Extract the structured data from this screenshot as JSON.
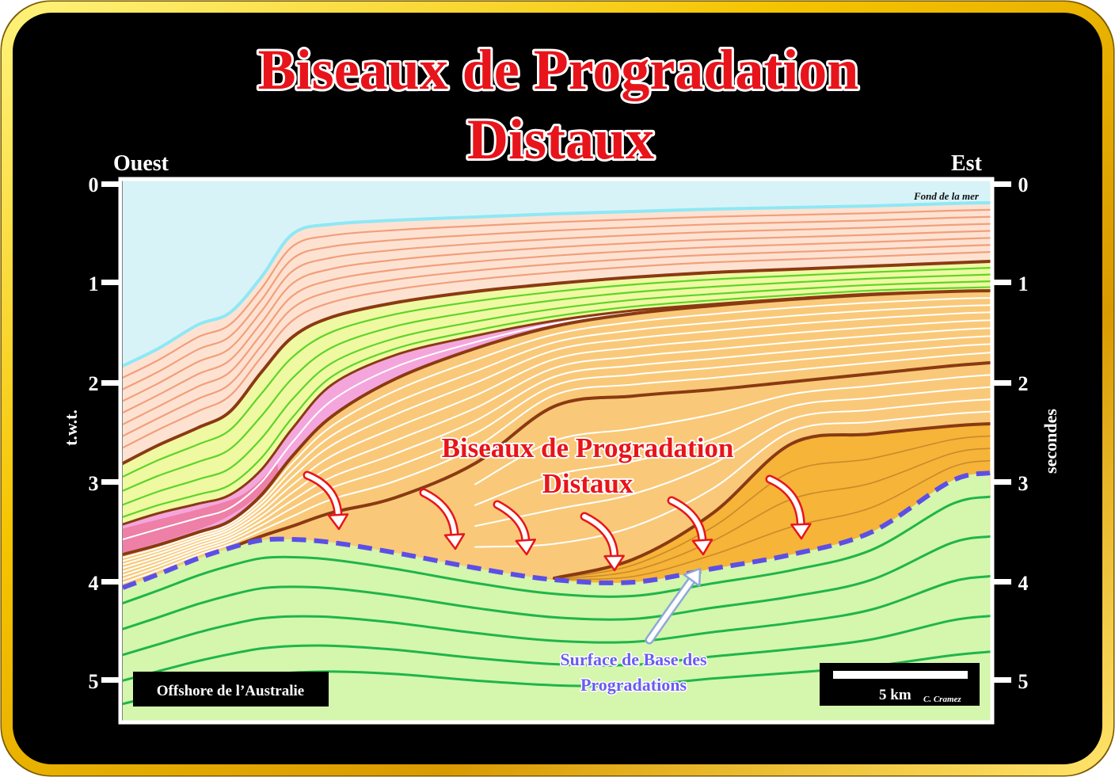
{
  "title": {
    "line1": "Biseaux de Progradation",
    "line2": "Distaux"
  },
  "directions": {
    "west": "Ouest",
    "east": "Est"
  },
  "axis": {
    "left_label": "t.w.t.",
    "right_label": "secondes",
    "ticks": [
      "0",
      "1",
      "2",
      "3",
      "4",
      "5"
    ]
  },
  "labels": {
    "sea_floor": "Fond de la mer",
    "onlap_line1": "Biseaux de Progradation",
    "onlap_line2": "Distaux",
    "surface_line1": "Surface de Base des",
    "surface_line2": "Progradations",
    "location": "Offshore de l’Australie",
    "scale": "5 km",
    "author": "C. Cramez"
  },
  "colors": {
    "title": "#e8141b",
    "onlap_label": "#e8141b",
    "surface_label": "#6a5cf0",
    "base_surface_dashed": "#5b4fe6",
    "frame_gold": "#f5c400",
    "sea": "#d8f3f7",
    "sea_floor_line": "#8ee8f5",
    "upper_layer": "#fde2d2",
    "green_band": "#eff9a2",
    "pink_layer": "#f4a6dc",
    "orange_layer": "#f9c979",
    "dark_orange_layer": "#f6b438",
    "lower_layer": "#d4f6ad",
    "horizon_brown": "#8a3a12"
  }
}
